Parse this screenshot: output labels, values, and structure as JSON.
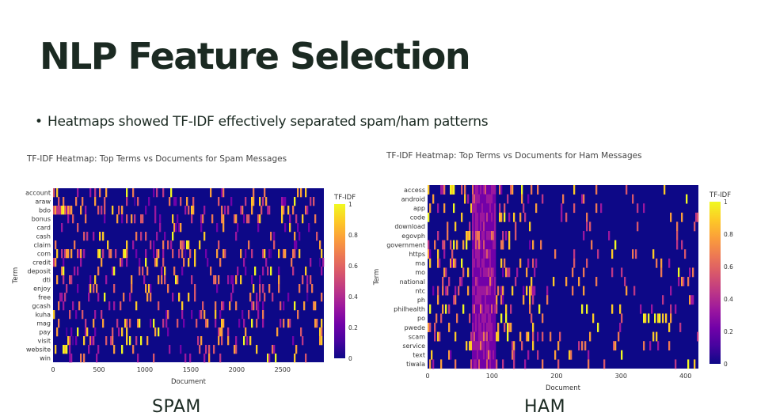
{
  "slide": {
    "title": "NLP Feature Selection",
    "bullet": "Heatmaps showed TF-IDF effectively separated spam/ham patterns"
  },
  "colors": {
    "title": "#1b2a22",
    "colorscale": [
      "#0d0887",
      "#46039f",
      "#7201a8",
      "#9c179e",
      "#bd3786",
      "#d8576b",
      "#ed7953",
      "#fb9f3a",
      "#fdca26",
      "#f0f921"
    ]
  },
  "captions": {
    "spam": "SPAM",
    "ham": "HAM"
  },
  "chart_data": [
    {
      "type": "heatmap",
      "title": "TF-IDF Heatmap: Top Terms vs Documents for Spam Messages",
      "xlabel": "Document",
      "ylabel": "Term",
      "xlim": [
        0,
        2950
      ],
      "x_ticks": [
        0,
        500,
        1000,
        1500,
        2000,
        2500
      ],
      "terms": [
        "account",
        "araw",
        "bdo",
        "bonus",
        "card",
        "cash",
        "claim",
        "com",
        "credit",
        "deposit",
        "dti",
        "enjoy",
        "free",
        "gcash",
        "kuha",
        "mag",
        "pay",
        "visit",
        "website",
        "win"
      ],
      "colorbar": {
        "title": "TF-IDF",
        "range": [
          0,
          1
        ],
        "ticks": [
          "1",
          "0.8",
          "0.6",
          "0.4",
          "0.2",
          "0"
        ]
      },
      "pattern": "sparse scattered non-zero TF-IDF values across all terms and documents"
    },
    {
      "type": "heatmap",
      "title": "TF-IDF Heatmap: Top Terms vs Documents for Ham Messages",
      "xlabel": "Document",
      "ylabel": "Term",
      "xlim": [
        0,
        420
      ],
      "x_ticks": [
        0,
        100,
        200,
        300,
        400
      ],
      "terms": [
        "access",
        "android",
        "app",
        "code",
        "download",
        "egovph",
        "government",
        "https",
        "ma",
        "mo",
        "national",
        "ntc",
        "ph",
        "philhealth",
        "po",
        "pwede",
        "scam",
        "service",
        "text",
        "tiwala"
      ],
      "colorbar": {
        "title": "TF-IDF",
        "range": [
          0,
          1
        ],
        "ticks": [
          "1",
          "0.8",
          "0.6",
          "0.4",
          "0.2",
          "0"
        ]
      },
      "pattern": "dense block of values around documents 70-105 for most terms, sparse elsewhere"
    }
  ]
}
